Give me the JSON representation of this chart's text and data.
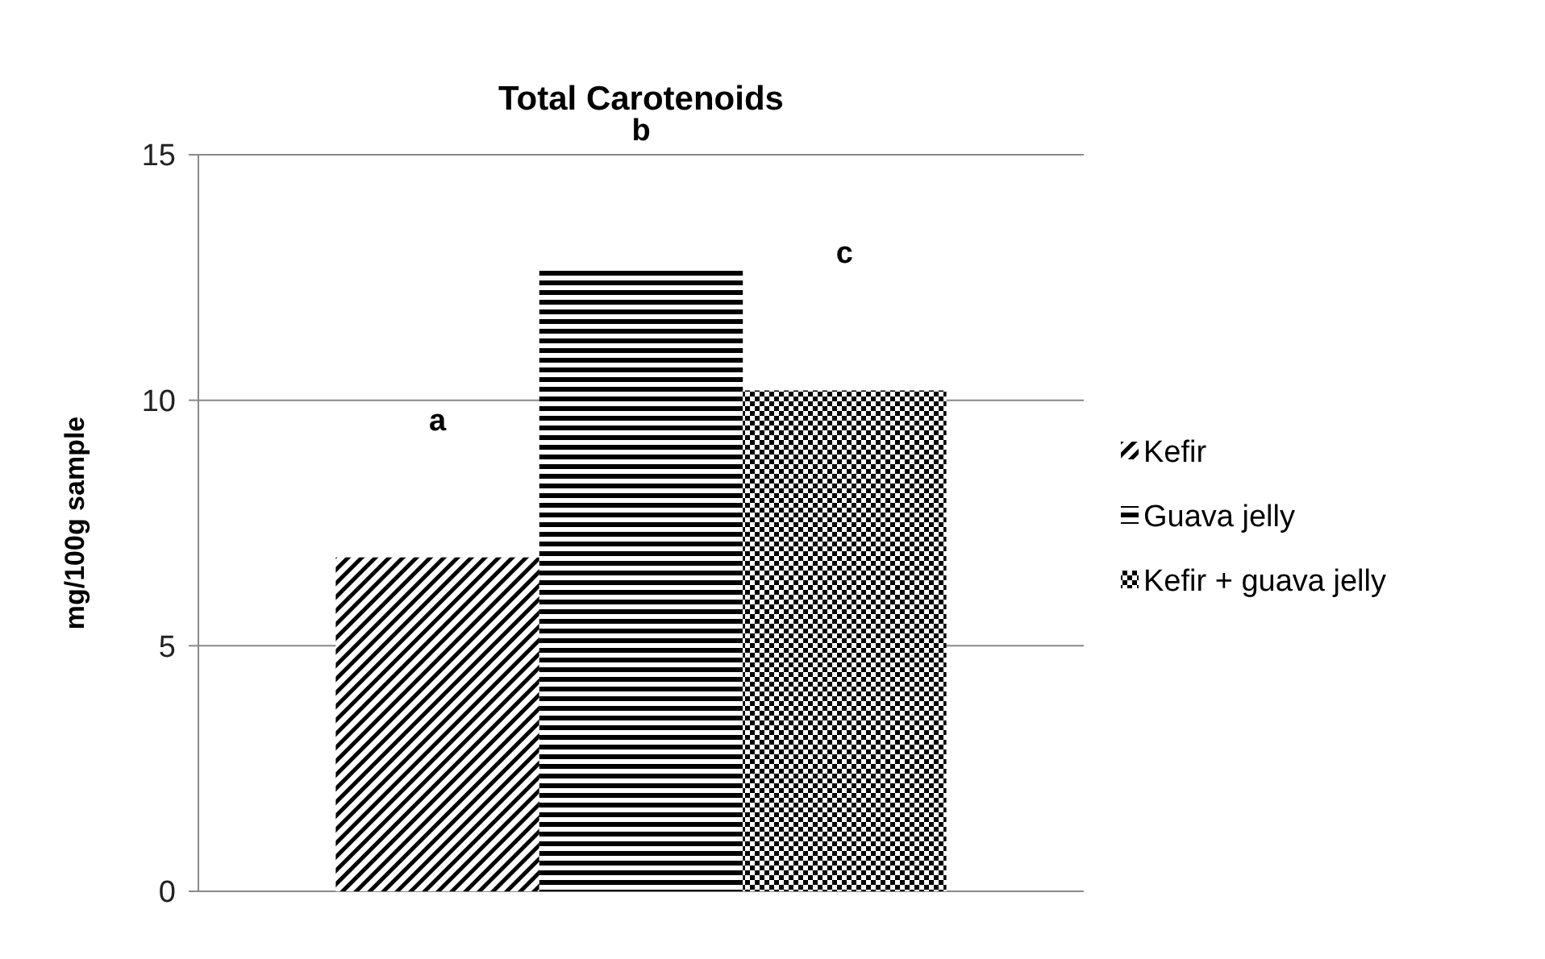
{
  "chart_data": {
    "type": "bar",
    "title": "Total Carotenoids",
    "ylabel": "mg/100g sample",
    "categories": [
      null
    ],
    "series": [
      {
        "name": "Kefir",
        "color": "#000000",
        "values": [
          6.8
        ]
      },
      {
        "name": "Guava jelly",
        "color": "#000000",
        "values": [
          12.7
        ]
      },
      {
        "name": "Kefir + guava jelly",
        "color": "#000000",
        "values": [
          10.2
        ]
      }
    ],
    "annotations": [
      "a",
      "b",
      "c"
    ],
    "ylim": [
      0,
      15
    ],
    "yticks": [
      0,
      5,
      10,
      15
    ],
    "grid": "y",
    "legend": "right"
  }
}
